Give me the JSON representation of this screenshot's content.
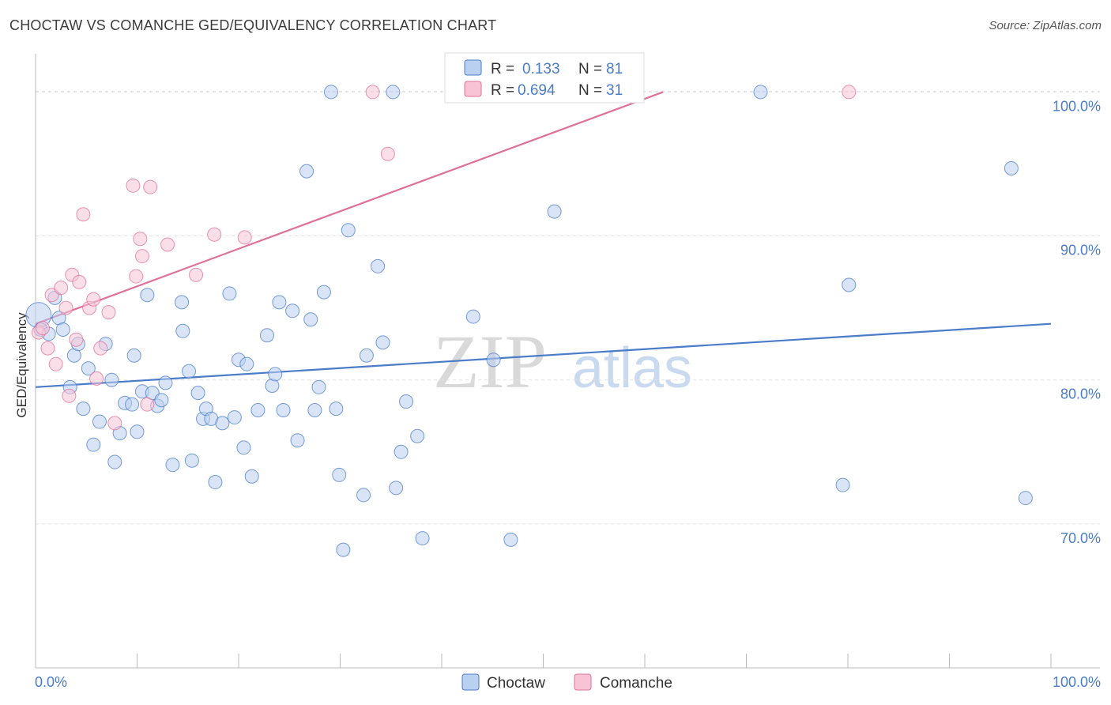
{
  "title": "CHOCTAW VS COMANCHE GED/EQUIVALENCY CORRELATION CHART",
  "source": "Source: ZipAtlas.com",
  "colors": {
    "choctaw": "#4a7cc9",
    "choctaw_fill": "#b9d0f0",
    "comanche": "#e0709a",
    "comanche_fill": "#f8c4d5",
    "axis_label": "#4a7cc9"
  },
  "legend": {
    "rows": [
      {
        "r_label": "R =",
        "r_value": "0.133",
        "n_label": "N =",
        "n_value": "81"
      },
      {
        "r_label": "R =",
        "r_value": "0.694",
        "n_label": "N =",
        "n_value": "31"
      }
    ]
  },
  "bottom_legend": [
    "Choctaw",
    "Comanche"
  ],
  "watermark": {
    "zip": "ZIP",
    "atlas": "atlas"
  },
  "chart_data": {
    "type": "scatter",
    "xlabel": "",
    "ylabel": "GED/Equivalency",
    "xlim": [
      0,
      100
    ],
    "ylim": [
      60,
      102
    ],
    "x_tick_labels": [
      "0.0%",
      "100.0%"
    ],
    "y_ticks": [
      70,
      80,
      90,
      100
    ],
    "y_tick_labels": [
      "70.0%",
      "80.0%",
      "90.0%",
      "100.0%"
    ],
    "grid": true,
    "legend_position": "top-center",
    "series": [
      {
        "name": "Choctaw",
        "trend": {
          "x": [
            0,
            100
          ],
          "y": [
            79.5,
            83.9
          ]
        },
        "points": [
          [
            0.3,
            84.5
          ],
          [
            0.5,
            83.5
          ],
          [
            1.3,
            83.2
          ],
          [
            1.9,
            85.7
          ],
          [
            2.3,
            84.3
          ],
          [
            2.7,
            83.5
          ],
          [
            3.4,
            79.5
          ],
          [
            3.8,
            81.7
          ],
          [
            4.2,
            82.5
          ],
          [
            4.7,
            78.0
          ],
          [
            5.2,
            80.8
          ],
          [
            5.7,
            75.5
          ],
          [
            6.3,
            77.1
          ],
          [
            6.9,
            82.5
          ],
          [
            7.5,
            80.0
          ],
          [
            7.8,
            74.3
          ],
          [
            8.3,
            76.3
          ],
          [
            8.8,
            78.4
          ],
          [
            9.5,
            78.3
          ],
          [
            9.7,
            81.7
          ],
          [
            10.0,
            76.4
          ],
          [
            10.5,
            79.2
          ],
          [
            11.0,
            85.9
          ],
          [
            11.5,
            79.1
          ],
          [
            12.0,
            78.2
          ],
          [
            12.4,
            78.6
          ],
          [
            12.8,
            79.8
          ],
          [
            13.5,
            74.1
          ],
          [
            14.4,
            85.4
          ],
          [
            14.5,
            83.4
          ],
          [
            15.1,
            80.6
          ],
          [
            15.4,
            74.4
          ],
          [
            16.0,
            79.1
          ],
          [
            16.5,
            77.3
          ],
          [
            16.8,
            78.0
          ],
          [
            17.3,
            77.3
          ],
          [
            17.7,
            72.9
          ],
          [
            18.4,
            77.0
          ],
          [
            19.1,
            86.0
          ],
          [
            19.6,
            77.4
          ],
          [
            20.0,
            81.4
          ],
          [
            20.5,
            75.3
          ],
          [
            20.8,
            81.1
          ],
          [
            21.3,
            73.3
          ],
          [
            21.9,
            77.9
          ],
          [
            22.8,
            83.1
          ],
          [
            23.3,
            79.6
          ],
          [
            23.6,
            80.4
          ],
          [
            24.0,
            85.4
          ],
          [
            24.4,
            77.9
          ],
          [
            25.3,
            84.8
          ],
          [
            25.8,
            75.8
          ],
          [
            26.7,
            94.5
          ],
          [
            27.1,
            84.2
          ],
          [
            27.5,
            77.9
          ],
          [
            27.9,
            79.5
          ],
          [
            28.4,
            86.1
          ],
          [
            29.1,
            100.0
          ],
          [
            29.6,
            78.0
          ],
          [
            29.9,
            73.4
          ],
          [
            30.3,
            68.2
          ],
          [
            30.8,
            90.4
          ],
          [
            32.3,
            72.0
          ],
          [
            32.6,
            81.7
          ],
          [
            33.7,
            87.9
          ],
          [
            34.2,
            82.6
          ],
          [
            35.2,
            100.0
          ],
          [
            35.5,
            72.5
          ],
          [
            36.0,
            75.0
          ],
          [
            36.5,
            78.5
          ],
          [
            37.6,
            76.1
          ],
          [
            38.1,
            69.0
          ],
          [
            43.1,
            84.4
          ],
          [
            45.1,
            81.4
          ],
          [
            46.8,
            68.9
          ],
          [
            51.1,
            91.7
          ],
          [
            71.4,
            100.0
          ],
          [
            79.5,
            72.7
          ],
          [
            80.1,
            86.6
          ],
          [
            96.1,
            94.7
          ],
          [
            97.5,
            71.8
          ]
        ]
      },
      {
        "name": "Comanche",
        "trend": {
          "x": [
            0,
            61.8
          ],
          "y": [
            83.9,
            100.0
          ]
        },
        "points": [
          [
            0.3,
            83.3
          ],
          [
            0.7,
            83.6
          ],
          [
            1.2,
            82.2
          ],
          [
            1.6,
            85.9
          ],
          [
            2.0,
            81.1
          ],
          [
            2.5,
            86.4
          ],
          [
            3.0,
            85.0
          ],
          [
            3.3,
            78.9
          ],
          [
            3.6,
            87.3
          ],
          [
            4.0,
            82.8
          ],
          [
            4.3,
            86.8
          ],
          [
            4.7,
            91.5
          ],
          [
            5.3,
            85.0
          ],
          [
            5.7,
            85.6
          ],
          [
            6.0,
            80.1
          ],
          [
            6.4,
            82.2
          ],
          [
            7.2,
            84.7
          ],
          [
            7.8,
            77.0
          ],
          [
            9.6,
            93.5
          ],
          [
            9.9,
            87.2
          ],
          [
            10.3,
            89.8
          ],
          [
            10.5,
            88.6
          ],
          [
            11.0,
            78.3
          ],
          [
            11.3,
            93.4
          ],
          [
            13.0,
            89.4
          ],
          [
            15.8,
            87.3
          ],
          [
            17.6,
            90.1
          ],
          [
            20.6,
            89.9
          ],
          [
            33.2,
            100.0
          ],
          [
            34.7,
            95.7
          ],
          [
            80.1,
            100.0
          ]
        ]
      }
    ]
  }
}
